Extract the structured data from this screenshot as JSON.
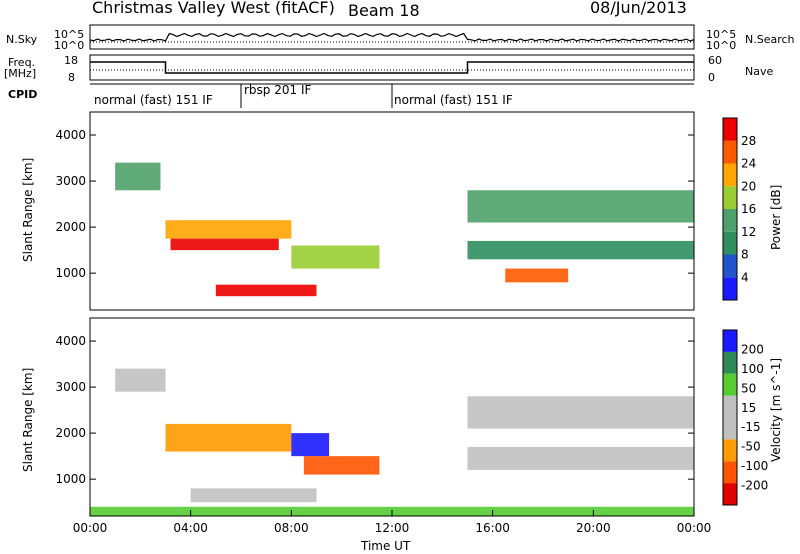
{
  "header": {
    "title": "Christmas Valley West (fitACF)",
    "beam": "Beam 18",
    "date": "08/Jun/2013"
  },
  "strip_labels": {
    "nsky": "N.Sky",
    "nsearch": "N.Search",
    "freq": "Freq.",
    "freq_unit": "[MHz]",
    "nave": "Nave",
    "cpid": "CPID"
  },
  "strip_ticks": {
    "noise_left_top": "10^5",
    "noise_left_bottom": "10^0",
    "noise_right_top": "10^5",
    "noise_right_bottom": "10^0",
    "freq_left_top": "18",
    "freq_left_bottom": "8",
    "nave_right_top": "60",
    "nave_right_bottom": "0"
  },
  "cpid_segments": [
    {
      "label": "normal (fast) 151 IF",
      "start": 0,
      "end": 6
    },
    {
      "label": "rbsp 201 IF",
      "start": 6,
      "end": 12
    },
    {
      "label": "normal (fast) 151 IF",
      "start": 12,
      "end": 24
    }
  ],
  "colors": {
    "power_scale": [
      "#1a1aff",
      "#2255cc",
      "#2f8f5f",
      "#4fa06a",
      "#9acd32",
      "#ffa500",
      "#ff5a00",
      "#ee0000"
    ],
    "velocity_scale": [
      "#e00000",
      "#ff5500",
      "#ff9a00",
      "#c0c0c0",
      "#c0c0c0",
      "#55cc33",
      "#2e8b57",
      "#1a1aff"
    ]
  },
  "chart_data": [
    {
      "type": "heatmap",
      "ylabel": "Slant Range [km]",
      "x_range": [
        0,
        24
      ],
      "ylim": [
        200,
        4500
      ],
      "yticks": [
        1000,
        2000,
        3000,
        4000
      ],
      "colorbar": {
        "label": "Power [dB]",
        "ticks": [
          "28",
          "24",
          "20",
          "16",
          "12",
          "8",
          "4"
        ]
      },
      "regions": [
        {
          "t0": 1.0,
          "t1": 2.8,
          "r0": 2800,
          "r1": 3400,
          "level": 3
        },
        {
          "t0": 3.0,
          "t1": 8.0,
          "r0": 1750,
          "r1": 2150,
          "level": 5
        },
        {
          "t0": 3.2,
          "t1": 7.5,
          "r0": 1500,
          "r1": 1750,
          "level": 7
        },
        {
          "t0": 8.0,
          "t1": 11.5,
          "r0": 1100,
          "r1": 1600,
          "level": 4
        },
        {
          "t0": 5.0,
          "t1": 9.0,
          "r0": 500,
          "r1": 750,
          "level": 7
        },
        {
          "t0": 15.0,
          "t1": 24.0,
          "r0": 2100,
          "r1": 2800,
          "level": 3
        },
        {
          "t0": 15.0,
          "t1": 24.0,
          "r0": 1300,
          "r1": 1700,
          "level": 2
        },
        {
          "t0": 16.5,
          "t1": 19.0,
          "r0": 800,
          "r1": 1100,
          "level": 6
        }
      ]
    },
    {
      "type": "heatmap",
      "ylabel": "Slant Range [km]",
      "xlabel": "Time UT",
      "x_range": [
        0,
        24
      ],
      "xticks": [
        "00:00",
        "04:00",
        "08:00",
        "12:00",
        "16:00",
        "20:00",
        "00:00"
      ],
      "ylim": [
        200,
        4500
      ],
      "yticks": [
        1000,
        2000,
        3000,
        4000
      ],
      "colorbar": {
        "label": "Velocity [m s^-1]",
        "ticks": [
          "200",
          "100",
          "50",
          "15",
          "-15",
          "-50",
          "-100",
          "-200"
        ]
      },
      "regions": [
        {
          "t0": 1.0,
          "t1": 3.0,
          "r0": 2900,
          "r1": 3400,
          "level": 3
        },
        {
          "t0": 3.0,
          "t1": 8.0,
          "r0": 1600,
          "r1": 2200,
          "level": 2
        },
        {
          "t0": 8.0,
          "t1": 9.5,
          "r0": 1500,
          "r1": 2000,
          "level": 7
        },
        {
          "t0": 8.5,
          "t1": 11.5,
          "r0": 1100,
          "r1": 1500,
          "level": 1
        },
        {
          "t0": 4.0,
          "t1": 9.0,
          "r0": 500,
          "r1": 800,
          "level": 3
        },
        {
          "t0": 15.0,
          "t1": 24.0,
          "r0": 2100,
          "r1": 2800,
          "level": 3
        },
        {
          "t0": 15.0,
          "t1": 24.0,
          "r0": 1200,
          "r1": 1700,
          "level": 3
        },
        {
          "t0": 0.0,
          "t1": 24.0,
          "r0": 200,
          "r1": 400,
          "level": 5
        }
      ]
    }
  ]
}
